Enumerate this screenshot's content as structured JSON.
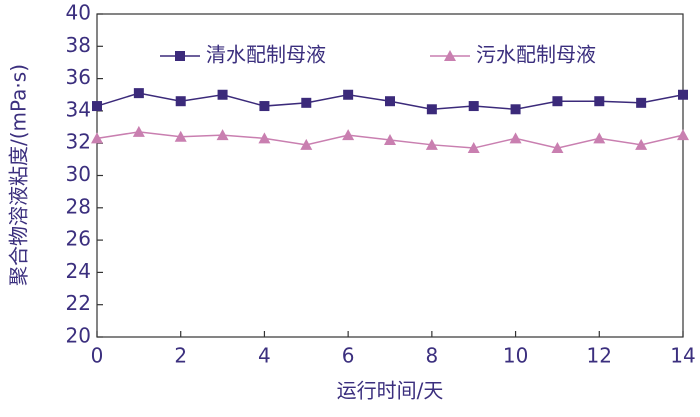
{
  "chart_data": {
    "type": "line",
    "x_label": "运行时间/天",
    "y_label": "聚合物溶液粘度/(mPa·s)",
    "x": [
      0,
      1,
      2,
      3,
      4,
      5,
      6,
      7,
      8,
      9,
      10,
      11,
      12,
      13,
      14
    ],
    "series": [
      {
        "name": "清水配制母液",
        "color": "#3b2a7a",
        "marker": "square",
        "values": [
          34.3,
          35.1,
          34.6,
          35.0,
          34.3,
          34.5,
          35.0,
          34.6,
          34.1,
          34.3,
          34.1,
          34.6,
          34.6,
          34.5,
          35.0
        ]
      },
      {
        "name": "污水配制母液",
        "color": "#c97fb0",
        "marker": "triangle",
        "values": [
          32.3,
          32.7,
          32.4,
          32.5,
          32.3,
          31.9,
          32.5,
          32.2,
          31.9,
          31.7,
          32.3,
          31.7,
          32.3,
          31.9,
          32.5
        ]
      }
    ],
    "xlim": [
      0,
      14
    ],
    "xticks": [
      0,
      2,
      4,
      6,
      8,
      10,
      12,
      14
    ],
    "ylim": [
      20,
      40
    ],
    "yticks": [
      20,
      22,
      24,
      26,
      28,
      30,
      32,
      34,
      36,
      38,
      40
    ],
    "legend": "top",
    "grid": false
  }
}
